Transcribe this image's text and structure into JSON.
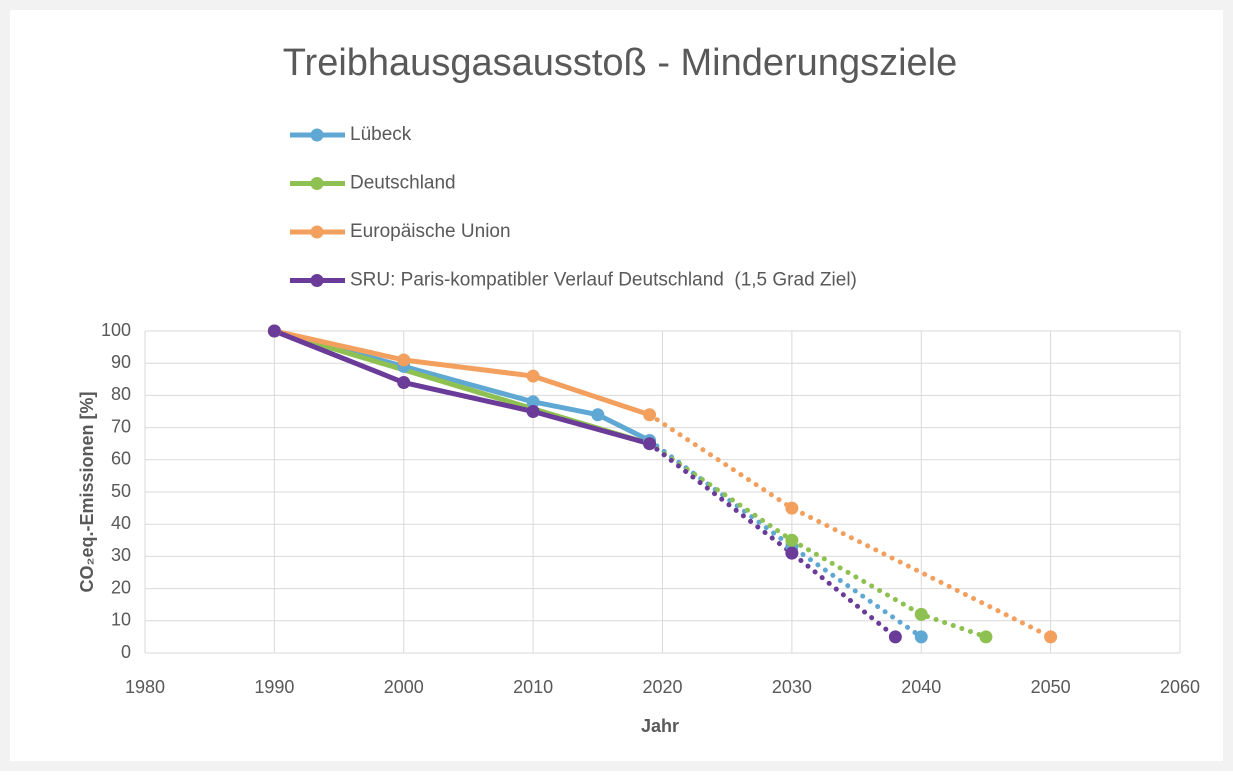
{
  "chart_data": {
    "type": "line",
    "title": "Treibhausgasausstoß - Minderungsziele",
    "xlabel": "Jahr",
    "ylabel": "CO₂eq.-Emissionen [%]",
    "xlim": [
      1980,
      2060
    ],
    "xticks": [
      1980,
      1990,
      2000,
      2010,
      2020,
      2030,
      2040,
      2050,
      2060
    ],
    "ylim": [
      0,
      100
    ],
    "yticks": [
      0,
      10,
      20,
      30,
      40,
      50,
      60,
      70,
      80,
      90,
      100
    ],
    "grid": true,
    "legend": "top",
    "projection_from": 2019,
    "series": [
      {
        "name": "Lübeck",
        "color": "#5fa8d3",
        "x": [
          1990,
          2000,
          2010,
          2015,
          2019,
          2030,
          2040
        ],
        "values": [
          100,
          89,
          78,
          74,
          66,
          33,
          5
        ]
      },
      {
        "name": "Deutschland",
        "color": "#8fc152",
        "x": [
          1990,
          2019,
          2030,
          2040,
          2045
        ],
        "values": [
          100,
          65,
          35,
          12,
          5
        ]
      },
      {
        "name": "Europäische Union",
        "color": "#f3a05f",
        "x": [
          1990,
          2000,
          2010,
          2019,
          2030,
          2050
        ],
        "values": [
          100,
          91,
          86,
          74,
          45,
          5
        ]
      },
      {
        "name": "SRU: Paris-kompatibler Verlauf Deutschland  (1,5 Grad Ziel)",
        "color": "#6a3b98",
        "x": [
          1990,
          2000,
          2010,
          2019,
          2030,
          2038
        ],
        "values": [
          100,
          84,
          75,
          65,
          31,
          5
        ]
      }
    ]
  }
}
